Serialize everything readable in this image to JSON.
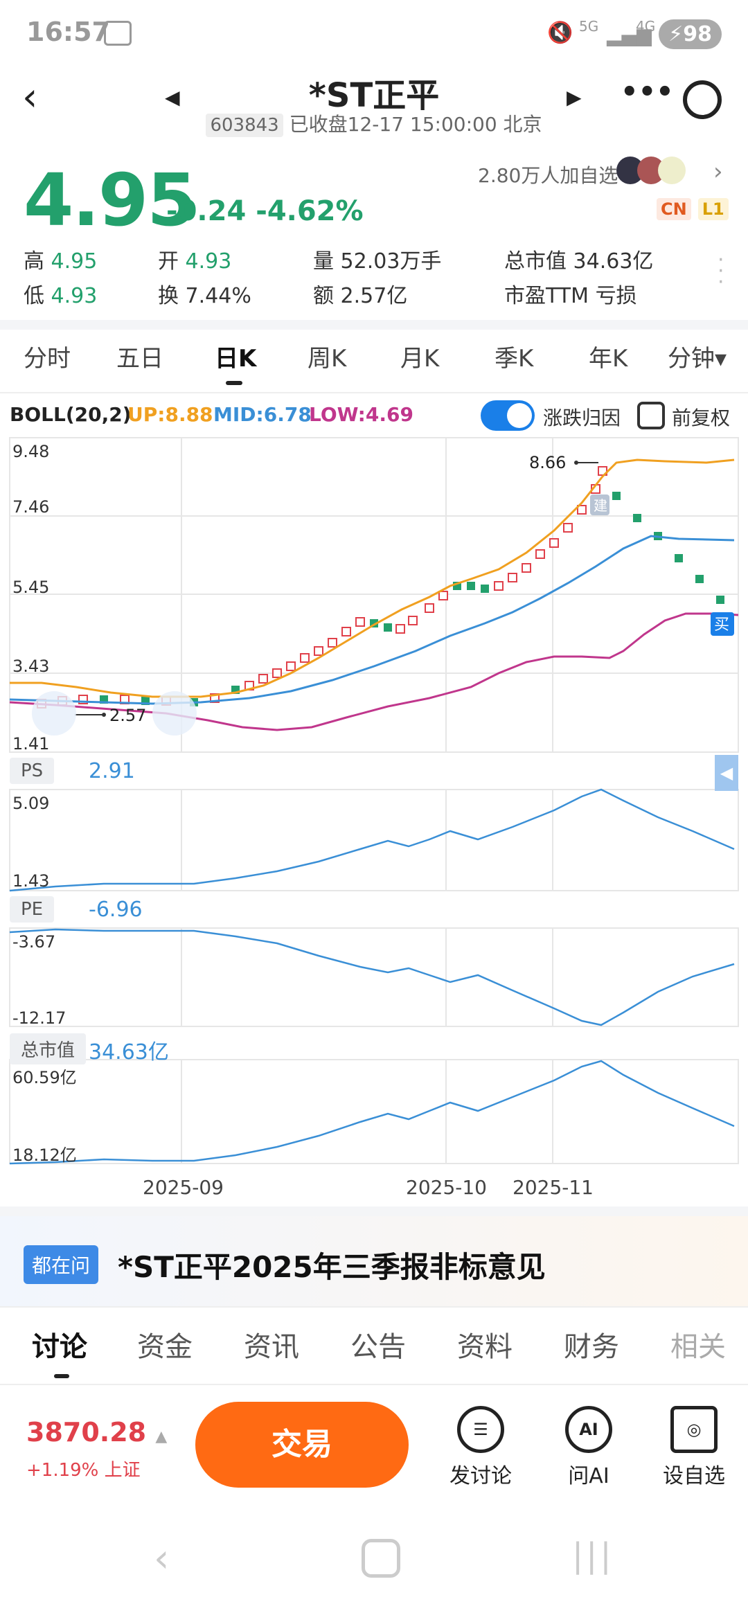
{
  "status_bar": {
    "time": "16:57",
    "network1": "5G",
    "network2": "4G",
    "battery": "98"
  },
  "header": {
    "title": "*ST正平",
    "code": "603843",
    "status_text": "已收盘12-17 15:00:00 北京"
  },
  "quote": {
    "price": "4.95",
    "change": "-0.24 -4.62%",
    "followers": "2.80万人加自选",
    "tags": [
      "CN",
      "L1"
    ],
    "stats": [
      {
        "label": "高",
        "value": "4.95",
        "colored": true
      },
      {
        "label": "开",
        "value": "4.93",
        "colored": true
      },
      {
        "label": "量",
        "value": "52.03万手",
        "colored": false
      },
      {
        "label": "总市值",
        "value": "34.63亿",
        "colored": false
      },
      {
        "label": "低",
        "value": "4.93",
        "colored": true
      },
      {
        "label": "换",
        "value": "7.44%",
        "colored": false
      },
      {
        "label": "额",
        "value": "2.57亿",
        "colored": false
      },
      {
        "label": "市盈TTM",
        "value": "亏损",
        "colored": false
      }
    ]
  },
  "period_tabs": [
    "分时",
    "五日",
    "日K",
    "周K",
    "月K",
    "季K",
    "年K",
    "分钟▾"
  ],
  "active_period": "日K",
  "boll": {
    "name": "BOLL(20,2)",
    "up": "UP:8.88",
    "mid": "MID:6.78",
    "low": "LOW:4.69",
    "toggle_label": "涨跌归因",
    "adjust_label": "前复权"
  },
  "main_chart": {
    "y_labels": [
      "9.48",
      "7.46",
      "5.45",
      "3.43",
      "1.41"
    ],
    "high_marker": "8.66",
    "low_marker": "2.57",
    "build_marker": "建",
    "buy_marker": "买"
  },
  "ps_panel": {
    "name": "PS",
    "value": "2.91",
    "y_max": "5.09",
    "y_min": "1.43"
  },
  "pe_panel": {
    "name": "PE",
    "value": "-6.96",
    "y_max": "-3.67",
    "y_min": "-12.17"
  },
  "mcap_panel": {
    "name": "总市值",
    "value": "34.63亿",
    "y_max": "60.59亿",
    "y_min": "18.12亿"
  },
  "x_labels": [
    "2025-09",
    "2025-10",
    "2025-11"
  ],
  "news": {
    "badge": "都在问",
    "headline": "*ST正平2025年三季报非标意见"
  },
  "bottom_tabs": [
    "讨论",
    "资金",
    "资讯",
    "公告",
    "资料",
    "财务",
    "相关"
  ],
  "index": {
    "value": "3870.28",
    "change": "+1.19% 上证"
  },
  "actions": {
    "trade": "交易",
    "discuss": "发讨论",
    "ai": "问AI",
    "watch": "设自选"
  },
  "colors": {
    "down": "#23a06c",
    "up": "#e0404a",
    "boll_up": "#f0a020",
    "boll_mid": "#3a8fd6",
    "boll_low": "#c0368c",
    "accent": "#ff6a13"
  }
}
